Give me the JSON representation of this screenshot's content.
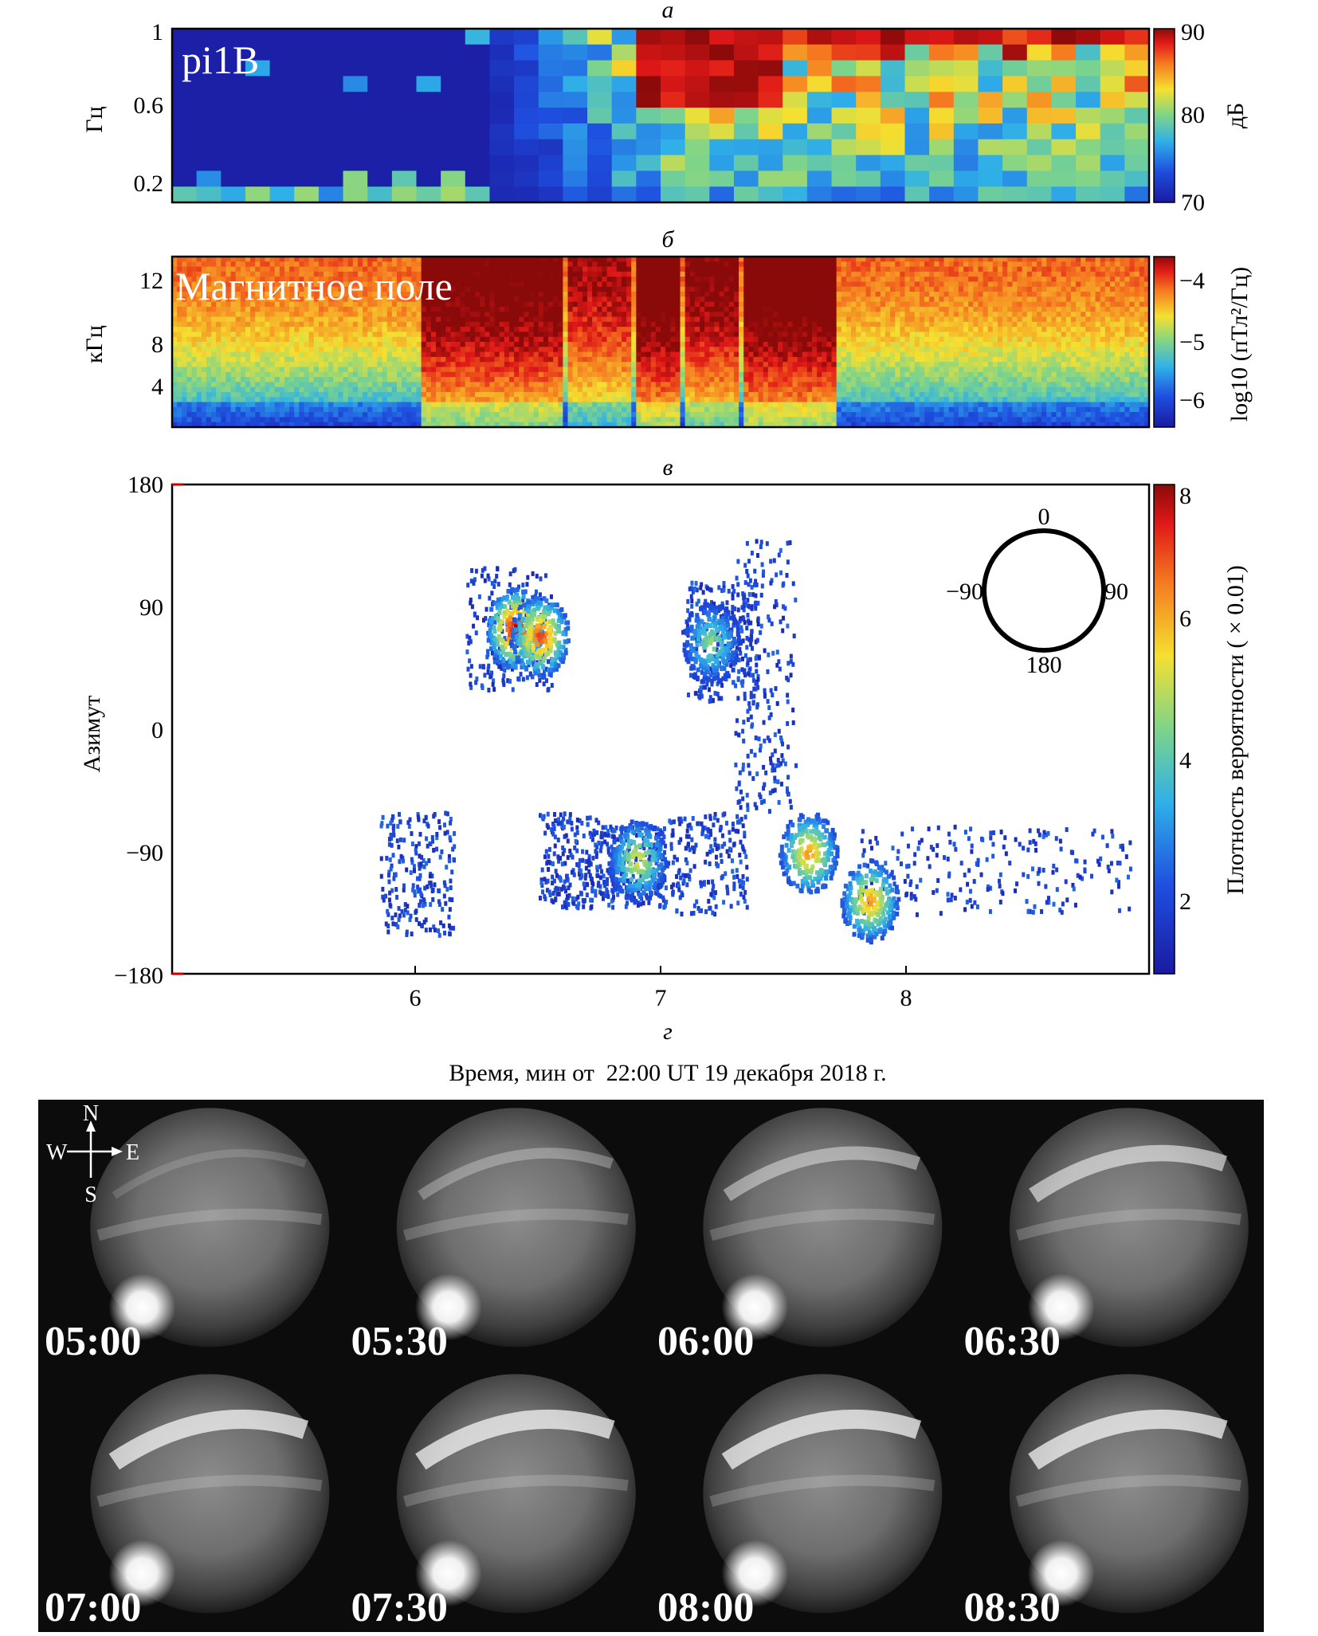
{
  "figure": {
    "xlabel": "Время, мин от  22:00 UT 19 декабря 2018 г."
  },
  "panel_a": {
    "letter": "а",
    "overlay": "pi1B",
    "ylabel": "Гц",
    "yticks": [
      "1",
      "0.6",
      "0.2"
    ],
    "cbar_label": "дБ",
    "cbar_ticks": [
      "90",
      "80",
      "70"
    ]
  },
  "panel_b": {
    "letter": "б",
    "overlay": "Магнитное поле",
    "ylabel": "кГц",
    "yticks": [
      "12",
      "8",
      "4"
    ],
    "cbar_label": "log10 (пТл²/Гц)",
    "cbar_ticks": [
      "−4",
      "−5",
      "−6"
    ]
  },
  "panel_c": {
    "letter": "в",
    "ylabel": "Азимут",
    "yticks": [
      "180",
      "90",
      "0",
      "−90",
      "−180"
    ],
    "xticks": [
      "6",
      "7",
      "8"
    ],
    "cbar_label": "Плотность вероятности ( × 0.01)",
    "cbar_ticks": [
      "8",
      "6",
      "4",
      "2"
    ],
    "compass": {
      "top": "0",
      "left": "−90",
      "right": "90",
      "bottom": "180"
    }
  },
  "panel_d": {
    "letter": "г",
    "compass": {
      "n": "N",
      "w": "W",
      "e": "E",
      "s": "S"
    },
    "frames": [
      {
        "time": "05:00"
      },
      {
        "time": "05:30"
      },
      {
        "time": "06:00"
      },
      {
        "time": "06:30"
      },
      {
        "time": "07:00"
      },
      {
        "time": "07:30"
      },
      {
        "time": "08:00"
      },
      {
        "time": "08:30"
      }
    ]
  },
  "chart_data": [
    {
      "type": "heatmap",
      "title": "а",
      "ylabel": "Гц",
      "colorbar": {
        "label": "дБ",
        "range": [
          70,
          90
        ]
      },
      "x_range": [
        5,
        9
      ],
      "y_range": [
        0.1,
        1.0
      ],
      "rows": 11,
      "cols": 40,
      "description_values": "dB levels rising from ~70 before 6.1 min to ~90 at low frequency after 6.5 min"
    },
    {
      "type": "heatmap",
      "title": "б",
      "ylabel": "кГц",
      "colorbar": {
        "label": "log10 (пТл²/Гц)",
        "range": [
          -6.5,
          -3.5
        ]
      },
      "x_range": [
        5,
        9
      ],
      "y_range": [
        0,
        14
      ]
    },
    {
      "type": "heatmap",
      "title": "в",
      "ylabel": "Азимут",
      "xlim": [
        5,
        9
      ],
      "ylim": [
        -180,
        180
      ],
      "colorbar": {
        "label": "Плотность вероятности ( × 0.01)",
        "range": [
          1,
          8
        ]
      },
      "clusters": [
        {
          "x": 6.4,
          "y": 75,
          "peak": 8
        },
        {
          "x": 6.5,
          "y": 70,
          "peak": 7
        },
        {
          "x": 7.2,
          "y": 65,
          "peak": 4
        },
        {
          "x": 6.9,
          "y": -95,
          "peak": 5
        },
        {
          "x": 7.6,
          "y": -90,
          "peak": 6
        },
        {
          "x": 7.85,
          "y": -125,
          "peak": 6
        }
      ]
    }
  ]
}
